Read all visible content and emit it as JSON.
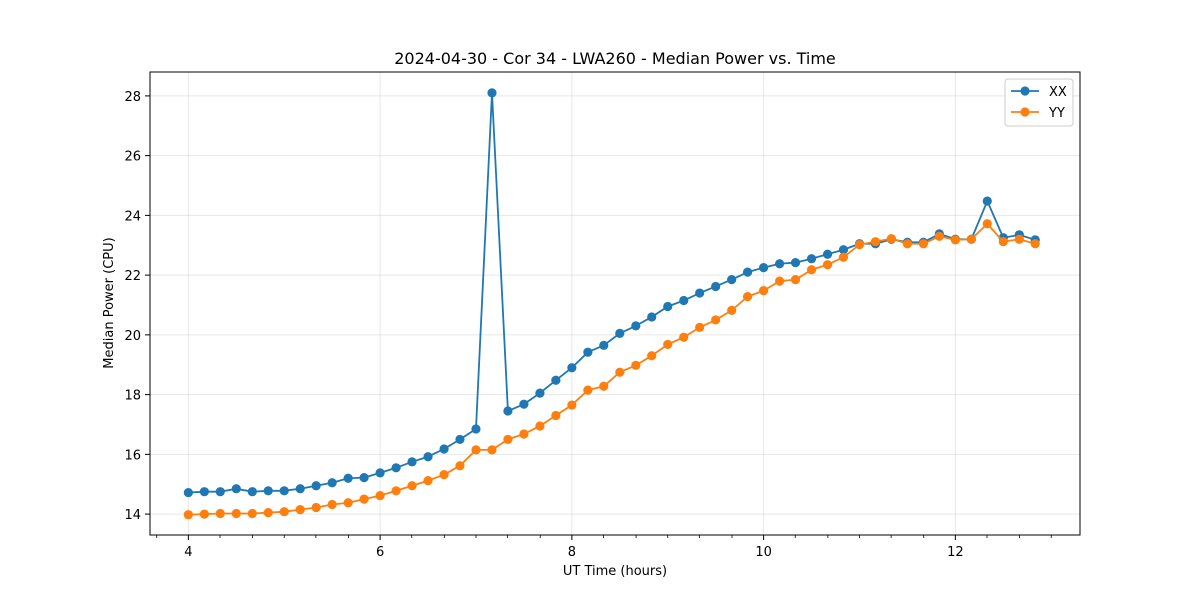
{
  "chart_data": {
    "type": "line",
    "title": "2024-04-30 - Cor 34 - LWA260 - Median Power vs. Time",
    "xlabel": "UT Time (hours)",
    "ylabel": "Median Power (CPU)",
    "xlim": [
      3.6,
      13.3
    ],
    "ylim": [
      13.3,
      28.8
    ],
    "xticks": [
      4,
      6,
      8,
      10,
      12
    ],
    "yticks": [
      14,
      16,
      18,
      20,
      22,
      24,
      26,
      28
    ],
    "xticks_minor": [
      3.67,
      4.33,
      4.67,
      5,
      5.33,
      5.67,
      6.33,
      6.67,
      7,
      7.33,
      7.67,
      8.33,
      8.67,
      9,
      9.33,
      9.67,
      10.33,
      10.67,
      11,
      11.33,
      11.67,
      12.33,
      12.67,
      13
    ],
    "grid": true,
    "legend_position": "top-right",
    "series": [
      {
        "name": "XX",
        "color": "#1f77b4",
        "x": [
          4.0,
          4.167,
          4.333,
          4.5,
          4.667,
          4.833,
          5.0,
          5.167,
          5.333,
          5.5,
          5.667,
          5.833,
          6.0,
          6.167,
          6.333,
          6.5,
          6.667,
          6.833,
          7.0,
          7.167,
          7.333,
          7.5,
          7.667,
          7.833,
          8.0,
          8.167,
          8.333,
          8.5,
          8.667,
          8.833,
          9.0,
          9.167,
          9.333,
          9.5,
          9.667,
          9.833,
          10.0,
          10.167,
          10.333,
          10.5,
          10.667,
          10.833,
          11.0,
          11.167,
          11.333,
          11.5,
          11.667,
          11.833,
          12.0,
          12.167,
          12.333,
          12.5,
          12.667,
          12.833
        ],
        "y": [
          14.72,
          14.75,
          14.75,
          14.85,
          14.75,
          14.78,
          14.78,
          14.85,
          14.95,
          15.05,
          15.2,
          15.22,
          15.38,
          15.55,
          15.75,
          15.92,
          16.18,
          16.5,
          16.85,
          28.1,
          17.45,
          17.68,
          18.05,
          18.48,
          18.9,
          19.42,
          19.65,
          20.05,
          20.3,
          20.6,
          20.95,
          21.15,
          21.4,
          21.62,
          21.85,
          22.1,
          22.25,
          22.38,
          22.42,
          22.55,
          22.7,
          22.85,
          23.05,
          23.05,
          23.2,
          23.1,
          23.1,
          23.38,
          23.2,
          23.2,
          24.48,
          23.25,
          23.35,
          23.18
        ]
      },
      {
        "name": "YY",
        "color": "#ff7f0e",
        "x": [
          4.0,
          4.167,
          4.333,
          4.5,
          4.667,
          4.833,
          5.0,
          5.167,
          5.333,
          5.5,
          5.667,
          5.833,
          6.0,
          6.167,
          6.333,
          6.5,
          6.667,
          6.833,
          7.0,
          7.167,
          7.333,
          7.5,
          7.667,
          7.833,
          8.0,
          8.167,
          8.333,
          8.5,
          8.667,
          8.833,
          9.0,
          9.167,
          9.333,
          9.5,
          9.667,
          9.833,
          10.0,
          10.167,
          10.333,
          10.5,
          10.667,
          10.833,
          11.0,
          11.167,
          11.333,
          11.5,
          11.667,
          11.833,
          12.0,
          12.167,
          12.333,
          12.5,
          12.667,
          12.833
        ],
        "y": [
          13.98,
          14.0,
          14.02,
          14.02,
          14.02,
          14.05,
          14.08,
          14.15,
          14.22,
          14.32,
          14.38,
          14.5,
          14.62,
          14.78,
          14.95,
          15.12,
          15.32,
          15.62,
          16.15,
          16.15,
          16.5,
          16.68,
          16.95,
          17.3,
          17.65,
          18.15,
          18.28,
          18.75,
          18.98,
          19.3,
          19.68,
          19.92,
          20.25,
          20.5,
          20.82,
          21.28,
          21.48,
          21.8,
          21.85,
          22.18,
          22.35,
          22.6,
          23.02,
          23.12,
          23.22,
          23.05,
          23.05,
          23.3,
          23.18,
          23.2,
          23.72,
          23.12,
          23.2,
          23.05
        ]
      }
    ]
  }
}
